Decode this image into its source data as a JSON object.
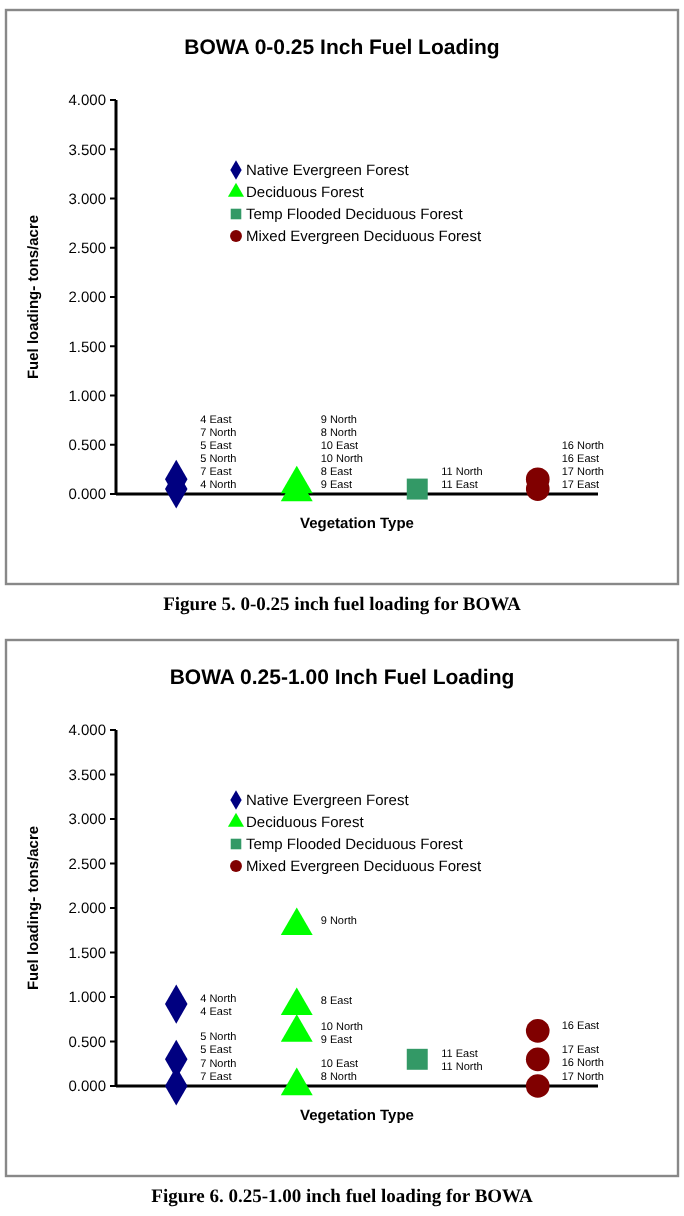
{
  "chart_data": [
    {
      "type": "scatter",
      "title": "BOWA 0-0.25 Inch Fuel Loading",
      "xlabel": "Vegetation Type",
      "ylabel": "Fuel loading- tons/acre",
      "categories": [
        null,
        null,
        null,
        null
      ],
      "ylim": [
        0,
        4
      ],
      "yticks": [
        {
          "value": 0,
          "label": "0.000"
        },
        {
          "value": 0.5,
          "label": "0.500"
        },
        {
          "value": 1,
          "label": "1.000"
        },
        {
          "value": 1.5,
          "label": "1.500"
        },
        {
          "value": 2,
          "label": "2.000"
        },
        {
          "value": 2.5,
          "label": "2.500"
        },
        {
          "value": 3,
          "label": "3.000"
        },
        {
          "value": 3.5,
          "label": "3.500"
        },
        {
          "value": 4,
          "label": "4.000"
        }
      ],
      "tick_labels": "y",
      "grid": false,
      "legend": "top",
      "annotations": [
        "Figure 5. 0-0.25 inch fuel loading for BOWA",
        "4 East",
        "7 North",
        "5 East",
        "5 North",
        "7 East",
        "4 North",
        "9 North",
        "8 North",
        "10 East",
        "10 North",
        "8 East",
        "9 East",
        "11 North",
        "11 East",
        "16 North",
        "16 East",
        "17 North",
        "17 East"
      ],
      "series": [
        {
          "name": "Native Evergreen Forest",
          "color": "#000080",
          "marker": "diamond",
          "values": [
            0.15,
            null,
            null,
            null
          ]
        },
        {
          "color": "#000080",
          "marker": "diamond",
          "values": [
            0.05,
            null,
            null,
            null
          ]
        },
        {
          "name": "Deciduous Forest",
          "color": "#00ff00",
          "marker": "triangle",
          "values": [
            null,
            0.1,
            null,
            null
          ]
        },
        {
          "color": "#00ff00",
          "marker": "triangle",
          "values": [
            null,
            0.02,
            null,
            null
          ]
        },
        {
          "name": "Temp Flooded Deciduous Forest",
          "color": "#339966",
          "marker": "square",
          "values": [
            null,
            null,
            0.05,
            null
          ]
        },
        {
          "name": "Mixed Evergreen Deciduous Forest",
          "color": "#800000",
          "marker": "circle",
          "values": [
            null,
            null,
            null,
            0.15
          ]
        },
        {
          "color": "#800000",
          "marker": "circle",
          "values": [
            null,
            null,
            null,
            0.05
          ]
        }
      ]
    },
    {
      "type": "scatter",
      "title": "BOWA 0.25-1.00 Inch Fuel Loading",
      "xlabel": "Vegetation Type",
      "ylabel": "Fuel loading- tons/acre",
      "categories": [
        null,
        null,
        null,
        null
      ],
      "ylim": [
        0,
        4
      ],
      "yticks": [
        {
          "value": 0,
          "label": "0.000"
        },
        {
          "value": 0.5,
          "label": "0.500"
        },
        {
          "value": 1,
          "label": "1.000"
        },
        {
          "value": 1.5,
          "label": "1.500"
        },
        {
          "value": 2,
          "label": "2.000"
        },
        {
          "value": 2.5,
          "label": "2.500"
        },
        {
          "value": 3,
          "label": "3.000"
        },
        {
          "value": 3.5,
          "label": "3.500"
        },
        {
          "value": 4,
          "label": "4.000"
        }
      ],
      "tick_labels": "y",
      "grid": false,
      "legend": "top",
      "annotations": [
        "Figure 6. 0.25-1.00 inch fuel loading for BOWA",
        "4 North",
        "4 East",
        "5 North",
        "5 East",
        "7 North",
        "7 East",
        "9 North",
        "8 East",
        "10 North",
        "9 East",
        "10 East",
        "8 North",
        "11 East",
        "11 North",
        "16 East",
        "17 East",
        "16 North",
        "17 North"
      ],
      "series": [
        {
          "name": "Native Evergreen Forest",
          "color": "#000080",
          "marker": "diamond",
          "values": [
            0.92,
            null,
            null,
            null
          ]
        },
        {
          "color": "#000080",
          "marker": "diamond",
          "values": [
            0.3,
            null,
            null,
            null
          ]
        },
        {
          "color": "#000080",
          "marker": "diamond",
          "values": [
            0,
            null,
            null,
            null
          ]
        },
        {
          "name": "Deciduous Forest",
          "color": "#00ff00",
          "marker": "triangle",
          "values": [
            null,
            1.8,
            null,
            null
          ]
        },
        {
          "color": "#00ff00",
          "marker": "triangle",
          "values": [
            null,
            0.9,
            null,
            null
          ]
        },
        {
          "color": "#00ff00",
          "marker": "triangle",
          "values": [
            null,
            0.6,
            null,
            null
          ]
        },
        {
          "color": "#00ff00",
          "marker": "triangle",
          "values": [
            null,
            0,
            null,
            null
          ]
        },
        {
          "name": "Temp Flooded Deciduous Forest",
          "color": "#339966",
          "marker": "square",
          "values": [
            null,
            null,
            0.3,
            null
          ]
        },
        {
          "name": "Mixed Evergreen Deciduous Forest",
          "color": "#800000",
          "marker": "circle",
          "values": [
            null,
            null,
            null,
            0.62
          ]
        },
        {
          "color": "#800000",
          "marker": "circle",
          "values": [
            null,
            null,
            null,
            0.3
          ]
        },
        {
          "color": "#800000",
          "marker": "circle",
          "values": [
            null,
            null,
            null,
            0
          ]
        }
      ]
    }
  ]
}
